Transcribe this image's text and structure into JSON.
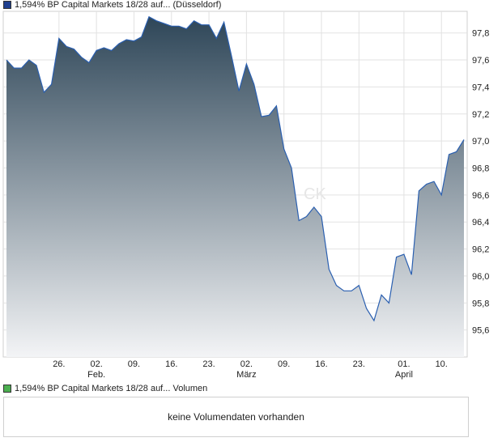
{
  "legend": {
    "price_label": "1,594% BP Capital Markets 18/28 auf... (Düsseldorf)",
    "price_color": "#1f3f8f",
    "volume_label": "1,594% BP Capital Markets 18/28 auf... Volumen",
    "volume_color": "#4caf50"
  },
  "volume": {
    "message": "keine Volumendaten vorhanden"
  },
  "watermark": "CK",
  "chart_data": {
    "type": "area",
    "ylim": [
      95.4,
      97.96
    ],
    "y_ticks": [
      "97,8",
      "97,6",
      "97,4",
      "97,2",
      "97,0",
      "96,8",
      "96,6",
      "96,4",
      "96,2",
      "96,0",
      "95,8",
      "95,6"
    ],
    "y_tick_values": [
      97.8,
      97.6,
      97.4,
      97.2,
      97.0,
      96.8,
      96.6,
      96.4,
      96.2,
      96.0,
      95.8,
      95.6
    ],
    "x_ticks": [
      {
        "label": "26.",
        "month": "",
        "index": 7
      },
      {
        "label": "02.",
        "month": "Feb.",
        "index": 12
      },
      {
        "label": "09.",
        "month": "",
        "index": 17
      },
      {
        "label": "16.",
        "month": "",
        "index": 22
      },
      {
        "label": "23.",
        "month": "",
        "index": 27
      },
      {
        "label": "02.",
        "month": "März",
        "index": 32
      },
      {
        "label": "09.",
        "month": "",
        "index": 37
      },
      {
        "label": "16.",
        "month": "",
        "index": 42
      },
      {
        "label": "23.",
        "month": "",
        "index": 47
      },
      {
        "label": "01.",
        "month": "April",
        "index": 53
      },
      {
        "label": "10.",
        "month": "",
        "index": 58
      }
    ],
    "values": [
      97.6,
      97.54,
      97.54,
      97.6,
      97.56,
      97.36,
      97.42,
      97.76,
      97.7,
      97.68,
      97.62,
      97.58,
      97.67,
      97.69,
      97.67,
      97.72,
      97.75,
      97.74,
      97.77,
      97.92,
      97.89,
      97.87,
      97.85,
      97.85,
      97.83,
      97.89,
      97.86,
      97.86,
      97.76,
      97.88,
      97.63,
      97.37,
      97.57,
      97.42,
      97.18,
      97.19,
      97.26,
      96.94,
      96.8,
      96.41,
      96.44,
      96.51,
      96.44,
      96.05,
      95.93,
      95.89,
      95.89,
      95.93,
      95.76,
      95.67,
      95.86,
      95.8,
      96.14,
      96.16,
      96.01,
      96.63,
      96.68,
      96.7,
      96.6,
      96.9,
      96.92,
      97.01
    ]
  }
}
